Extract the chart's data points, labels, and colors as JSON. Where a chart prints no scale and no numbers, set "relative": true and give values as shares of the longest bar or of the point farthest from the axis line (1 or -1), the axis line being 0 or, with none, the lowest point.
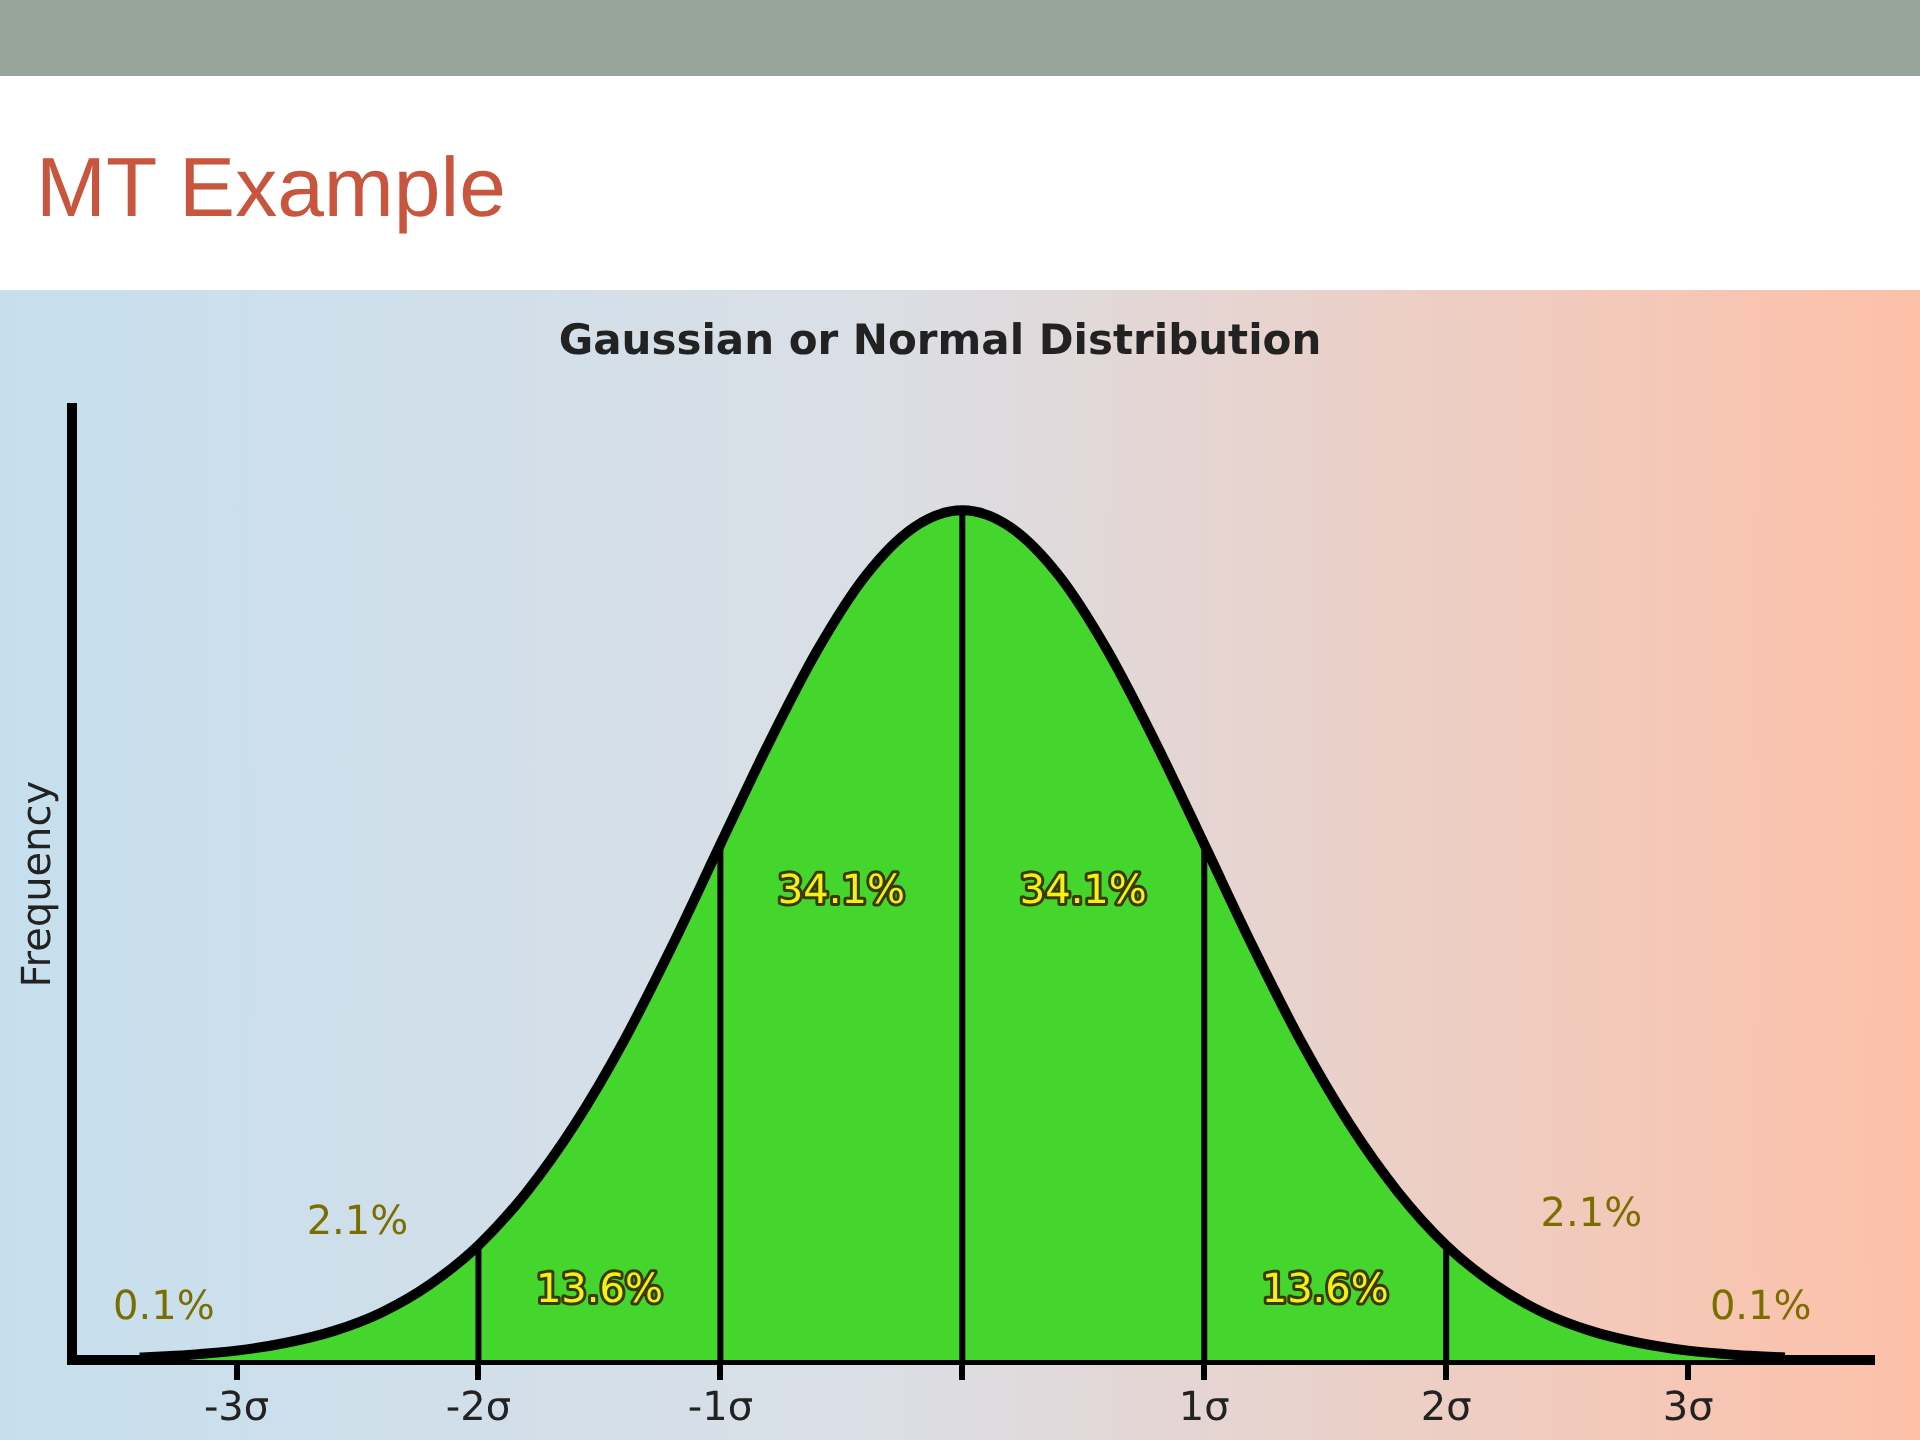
{
  "chart_data": {
    "type": "area",
    "title": "MT Example",
    "subtitle": "Gaussian or Normal Distribution",
    "ylabel": "Frequency",
    "relative": true,
    "x": [
      -3.4,
      -3.2,
      -3.0,
      -2.8,
      -2.6,
      -2.4,
      -2.2,
      -2.0,
      -1.8,
      -1.6,
      -1.4,
      -1.2,
      -1.0,
      -0.8,
      -0.6,
      -0.4,
      -0.2,
      0,
      0.2,
      0.4,
      0.6,
      0.8,
      1.0,
      1.2,
      1.4,
      1.6,
      1.8,
      2.0,
      2.2,
      2.4,
      2.6,
      2.8,
      3.0,
      3.2,
      3.4
    ],
    "series": [
      {
        "color": "#44d62c",
        "values": [
          0.003,
          0.006,
          0.011,
          0.02,
          0.034,
          0.056,
          0.089,
          0.135,
          0.198,
          0.278,
          0.375,
          0.487,
          0.607,
          0.726,
          0.835,
          0.923,
          0.98,
          1,
          0.98,
          0.923,
          0.835,
          0.726,
          0.607,
          0.487,
          0.375,
          0.278,
          0.198,
          0.135,
          0.089,
          0.056,
          0.034,
          0.02,
          0.011,
          0.006,
          0.003
        ]
      }
    ],
    "xlim": [
      -3.68,
      3.76
    ],
    "xticks": [
      {
        "value": -3,
        "label": "-3σ"
      },
      {
        "value": -2,
        "label": "-2σ"
      },
      {
        "value": -1,
        "label": "-1σ"
      },
      {
        "value": 0,
        "label": null
      },
      {
        "value": 1,
        "label": "1σ"
      },
      {
        "value": 2,
        "label": "2σ"
      },
      {
        "value": 3,
        "label": "3σ"
      }
    ],
    "ref_lines": [
      {
        "axis": "x",
        "value": -2
      },
      {
        "axis": "x",
        "value": -1
      },
      {
        "axis": "x",
        "value": 0
      },
      {
        "axis": "x",
        "value": 1
      },
      {
        "axis": "x",
        "value": 2
      }
    ],
    "annotations": [
      "34.1%",
      "34.1%",
      "13.6%",
      "13.6%",
      "2.1%",
      "2.1%",
      "0.1%",
      "0.1%"
    ],
    "grid": false,
    "legend": false
  }
}
